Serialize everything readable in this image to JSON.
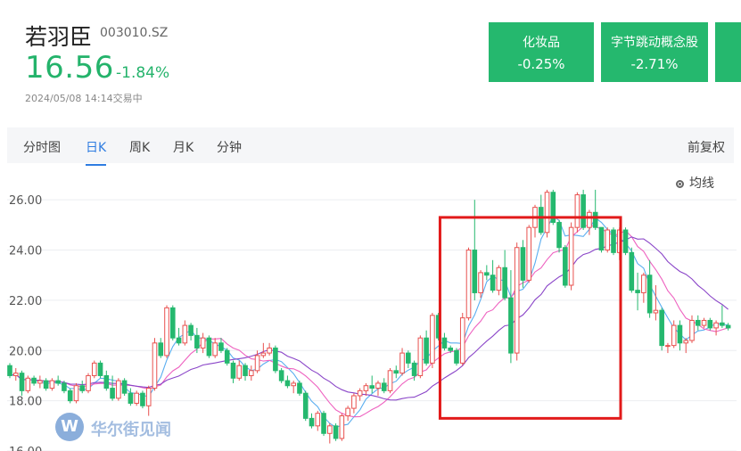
{
  "header": {
    "name": "若羽臣",
    "code": "003010.SZ",
    "price": "16.56",
    "change": "-1.84%",
    "timestamp": "2024/05/08 14:14交易中",
    "price_color": "#24b36b"
  },
  "concept_tags": [
    {
      "name": "化妆品",
      "change": "-0.25%"
    },
    {
      "name": "字节跳动概念股",
      "change": "-2.71%"
    }
  ],
  "tabs": [
    {
      "label": "分时图",
      "active": false
    },
    {
      "label": "日K",
      "active": true
    },
    {
      "label": "周K",
      "active": false
    },
    {
      "label": "月K",
      "active": false
    },
    {
      "label": "分钟",
      "active": false
    }
  ],
  "adjust_label": "前复权",
  "ma_toggle_label": "均线",
  "watermark": "华尔街见闻",
  "colors": {
    "up": "#e8514f",
    "down": "#25b86e",
    "ma5": "#5aaef0",
    "ma10": "#ee62c0",
    "ma20": "#8a45c8",
    "highlight": "#e21a1a",
    "accent": "#2f7de1"
  },
  "chart_data": {
    "type": "candlestick",
    "ylim": [
      16,
      27
    ],
    "yticks": [
      "16.00",
      "18.00",
      "20.00",
      "22.00",
      "24.00",
      "26.00"
    ],
    "grid": true,
    "ohlc": [
      [
        19.4,
        19.5,
        18.9,
        19.0
      ],
      [
        19.0,
        19.3,
        18.8,
        19.1
      ],
      [
        19.1,
        19.2,
        18.2,
        18.4
      ],
      [
        18.4,
        19.0,
        18.3,
        18.9
      ],
      [
        18.9,
        19.0,
        18.6,
        18.7
      ],
      [
        18.7,
        19.0,
        18.5,
        18.8
      ],
      [
        18.8,
        18.9,
        18.4,
        18.5
      ],
      [
        18.5,
        18.9,
        18.4,
        18.8
      ],
      [
        18.8,
        19.0,
        18.6,
        18.7
      ],
      [
        18.7,
        18.8,
        18.3,
        18.4
      ],
      [
        18.4,
        18.5,
        17.9,
        18.0
      ],
      [
        18.0,
        18.7,
        17.9,
        18.6
      ],
      [
        18.6,
        18.8,
        18.3,
        18.4
      ],
      [
        18.4,
        19.1,
        18.3,
        19.0
      ],
      [
        19.0,
        19.6,
        18.9,
        19.5
      ],
      [
        19.5,
        19.6,
        18.9,
        19.0
      ],
      [
        19.0,
        19.2,
        18.4,
        18.5
      ],
      [
        18.5,
        19.0,
        18.0,
        18.1
      ],
      [
        18.1,
        18.9,
        18.0,
        18.8
      ],
      [
        18.8,
        18.9,
        18.2,
        18.3
      ],
      [
        18.3,
        18.5,
        17.8,
        17.9
      ],
      [
        17.9,
        18.4,
        17.8,
        18.3
      ],
      [
        18.3,
        18.4,
        17.7,
        17.8
      ],
      [
        17.8,
        18.6,
        17.4,
        18.5
      ],
      [
        18.5,
        20.5,
        18.4,
        20.3
      ],
      [
        20.3,
        20.5,
        19.7,
        19.8
      ],
      [
        19.8,
        21.8,
        19.7,
        21.7
      ],
      [
        21.7,
        21.8,
        20.4,
        20.5
      ],
      [
        20.5,
        20.9,
        20.2,
        20.3
      ],
      [
        20.3,
        21.2,
        20.2,
        21.0
      ],
      [
        21.0,
        21.1,
        20.4,
        20.6
      ],
      [
        20.6,
        20.9,
        19.9,
        20.1
      ],
      [
        20.1,
        20.7,
        19.9,
        20.5
      ],
      [
        20.5,
        20.6,
        19.7,
        19.8
      ],
      [
        19.8,
        20.5,
        19.7,
        20.3
      ],
      [
        20.3,
        20.5,
        19.9,
        20.0
      ],
      [
        20.0,
        20.1,
        19.4,
        19.5
      ],
      [
        19.5,
        19.6,
        18.7,
        18.9
      ],
      [
        18.9,
        19.6,
        18.8,
        19.4
      ],
      [
        19.4,
        19.5,
        18.8,
        19.0
      ],
      [
        19.0,
        19.4,
        18.8,
        19.2
      ],
      [
        19.2,
        20.0,
        19.1,
        19.8
      ],
      [
        19.8,
        20.3,
        19.7,
        19.9
      ],
      [
        19.9,
        20.3,
        19.8,
        20.1
      ],
      [
        20.1,
        20.2,
        19.1,
        19.2
      ],
      [
        19.2,
        19.3,
        18.7,
        18.8
      ],
      [
        18.8,
        19.0,
        18.5,
        18.6
      ],
      [
        18.6,
        18.8,
        18.3,
        18.7
      ],
      [
        18.7,
        18.8,
        18.2,
        18.3
      ],
      [
        18.3,
        18.4,
        17.2,
        17.3
      ],
      [
        17.3,
        17.5,
        16.9,
        17.0
      ],
      [
        17.0,
        17.6,
        16.8,
        17.5
      ],
      [
        17.5,
        17.6,
        16.6,
        16.7
      ],
      [
        16.7,
        17.1,
        16.3,
        17.0
      ],
      [
        17.0,
        17.1,
        16.4,
        16.5
      ],
      [
        16.5,
        17.5,
        16.4,
        17.4
      ],
      [
        17.4,
        17.8,
        17.2,
        17.7
      ],
      [
        17.7,
        18.3,
        17.5,
        18.2
      ],
      [
        18.2,
        18.5,
        18.0,
        18.4
      ],
      [
        18.4,
        18.7,
        18.2,
        18.6
      ],
      [
        18.6,
        19.0,
        18.3,
        18.5
      ],
      [
        18.5,
        18.8,
        18.2,
        18.7
      ],
      [
        18.7,
        18.9,
        18.3,
        18.4
      ],
      [
        18.4,
        19.3,
        18.3,
        19.2
      ],
      [
        19.2,
        19.4,
        18.9,
        19.1
      ],
      [
        19.1,
        20.1,
        19.0,
        19.9
      ],
      [
        19.9,
        20.0,
        19.3,
        19.5
      ],
      [
        19.5,
        19.6,
        18.8,
        19.0
      ],
      [
        19.0,
        20.6,
        18.9,
        20.5
      ],
      [
        20.5,
        20.8,
        19.4,
        19.5
      ],
      [
        19.5,
        21.5,
        19.3,
        21.4
      ],
      [
        21.4,
        21.5,
        20.4,
        20.5
      ],
      [
        20.5,
        20.7,
        20.0,
        20.1
      ],
      [
        20.1,
        20.2,
        19.9,
        20.0
      ],
      [
        20.0,
        20.1,
        19.4,
        19.5
      ],
      [
        19.5,
        21.5,
        19.4,
        21.3
      ],
      [
        21.3,
        24.1,
        21.2,
        24.0
      ],
      [
        24.0,
        26.0,
        22.0,
        22.3
      ],
      [
        22.3,
        23.2,
        22.1,
        23.1
      ],
      [
        23.1,
        23.4,
        22.8,
        23.0
      ],
      [
        23.0,
        23.6,
        22.3,
        22.4
      ],
      [
        22.4,
        23.4,
        22.2,
        23.3
      ],
      [
        23.3,
        24.0,
        22.0,
        22.1
      ],
      [
        22.1,
        23.2,
        19.5,
        19.9
      ],
      [
        19.9,
        24.3,
        19.6,
        24.1
      ],
      [
        24.1,
        24.4,
        22.5,
        22.8
      ],
      [
        22.8,
        25.0,
        22.7,
        24.9
      ],
      [
        24.9,
        25.8,
        24.5,
        25.7
      ],
      [
        25.7,
        26.2,
        24.6,
        24.7
      ],
      [
        24.7,
        26.4,
        24.5,
        26.3
      ],
      [
        26.3,
        26.4,
        25.0,
        25.1
      ],
      [
        25.1,
        25.2,
        23.9,
        24.1
      ],
      [
        24.1,
        24.2,
        22.5,
        22.6
      ],
      [
        22.6,
        25.1,
        22.4,
        24.9
      ],
      [
        24.9,
        26.3,
        24.7,
        26.2
      ],
      [
        26.2,
        26.4,
        24.8,
        24.9
      ],
      [
        24.9,
        25.6,
        24.6,
        25.5
      ],
      [
        25.5,
        26.4,
        24.8,
        24.9
      ],
      [
        24.9,
        24.9,
        23.9,
        24.0
      ],
      [
        24.0,
        24.9,
        23.9,
        24.8
      ],
      [
        24.8,
        24.9,
        23.8,
        23.9
      ],
      [
        23.9,
        24.9,
        23.6,
        24.8
      ],
      [
        24.8,
        24.9,
        23.8,
        23.9
      ],
      [
        23.9,
        24.1,
        22.3,
        22.4
      ],
      [
        22.4,
        23.1,
        21.6,
        22.3
      ],
      [
        22.3,
        23.1,
        21.9,
        23.0
      ],
      [
        23.0,
        23.6,
        21.3,
        21.5
      ],
      [
        21.5,
        22.6,
        21.2,
        21.6
      ],
      [
        21.6,
        21.7,
        20.0,
        20.2
      ],
      [
        20.2,
        20.3,
        19.9,
        20.2
      ],
      [
        20.2,
        21.2,
        20.1,
        21.0
      ],
      [
        21.0,
        21.2,
        20.0,
        20.3
      ],
      [
        20.3,
        20.5,
        19.9,
        20.4
      ],
      [
        20.4,
        21.4,
        20.3,
        21.2
      ],
      [
        21.2,
        21.4,
        20.8,
        21.0
      ],
      [
        21.0,
        21.3,
        20.9,
        21.2
      ],
      [
        21.2,
        21.3,
        20.8,
        20.9
      ],
      [
        20.9,
        21.2,
        20.6,
        21.1
      ],
      [
        21.1,
        21.8,
        20.9,
        21.0
      ],
      [
        21.0,
        21.1,
        20.8,
        20.9
      ]
    ],
    "ma_windows": [
      5,
      10,
      20
    ],
    "highlight_range": {
      "from_index": 72,
      "to_index": 100,
      "ymin": 17.3,
      "ymax": 25.3
    }
  }
}
